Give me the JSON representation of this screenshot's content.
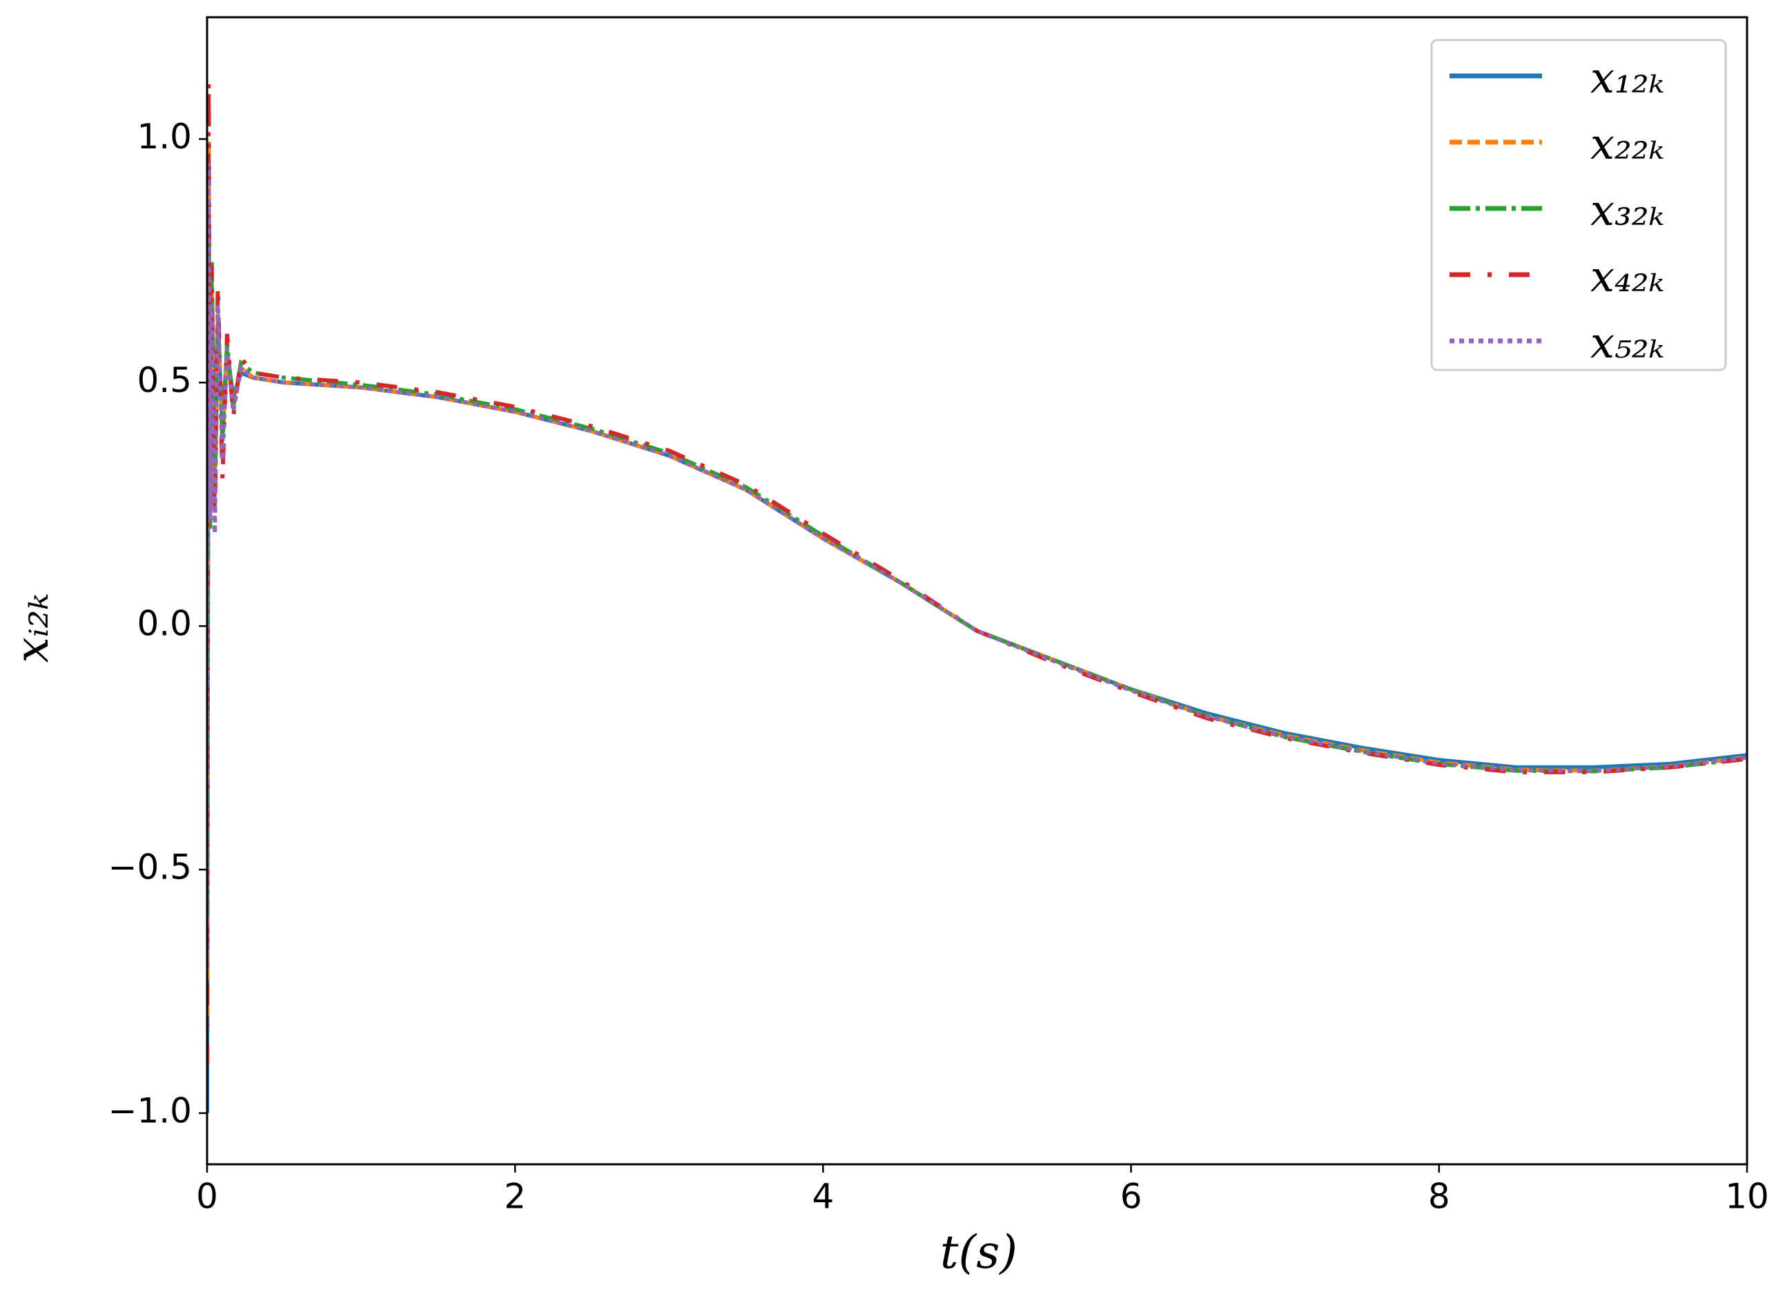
{
  "chart_data": {
    "type": "line",
    "xlabel": "t(s)",
    "ylabel": "xᵢ₂ₖ",
    "x": [
      0,
      0.01,
      0.02,
      0.03,
      0.05,
      0.07,
      0.1,
      0.13,
      0.17,
      0.22,
      0.3,
      0.5,
      1,
      1.5,
      2,
      2.5,
      3,
      3.5,
      4,
      4.5,
      5,
      5.5,
      6,
      6.5,
      7,
      7.5,
      8,
      8.5,
      9,
      9.5,
      10
    ],
    "series": [
      {
        "name": "x₁₂ₖ",
        "color": "#1f77b4",
        "linestyle": "solid",
        "values": [
          -1.0,
          0.9,
          0.3,
          0.68,
          0.35,
          0.6,
          0.42,
          0.56,
          0.47,
          0.52,
          0.51,
          0.5,
          0.49,
          0.47,
          0.44,
          0.4,
          0.35,
          0.28,
          0.18,
          0.09,
          -0.01,
          -0.07,
          -0.13,
          -0.18,
          -0.22,
          -0.25,
          -0.275,
          -0.29,
          -0.29,
          -0.283,
          -0.265
        ]
      },
      {
        "name": "x₂₂ₖ",
        "color": "#ff7f0e",
        "linestyle": "dashed",
        "values": [
          -0.8,
          1.0,
          0.25,
          0.7,
          0.3,
          0.62,
          0.4,
          0.55,
          0.46,
          0.53,
          0.51,
          0.5,
          0.49,
          0.47,
          0.44,
          0.4,
          0.35,
          0.28,
          0.18,
          0.09,
          -0.01,
          -0.07,
          -0.13,
          -0.185,
          -0.225,
          -0.255,
          -0.28,
          -0.295,
          -0.297,
          -0.288,
          -0.27
        ]
      },
      {
        "name": "x₃₂ₖ",
        "color": "#2ca02c",
        "linestyle": "dashdot",
        "values": [
          -0.6,
          0.85,
          0.2,
          0.75,
          0.28,
          0.64,
          0.38,
          0.58,
          0.45,
          0.54,
          0.52,
          0.51,
          0.495,
          0.475,
          0.445,
          0.405,
          0.355,
          0.285,
          0.185,
          0.09,
          -0.01,
          -0.07,
          -0.13,
          -0.185,
          -0.228,
          -0.258,
          -0.283,
          -0.297,
          -0.298,
          -0.29,
          -0.272
        ]
      },
      {
        "name": "x₄₂ₖ",
        "color": "#d62728",
        "linestyle": "loosedashdot",
        "values": [
          -0.9,
          1.12,
          0.28,
          0.74,
          0.22,
          0.7,
          0.3,
          0.6,
          0.43,
          0.55,
          0.52,
          0.51,
          0.5,
          0.48,
          0.45,
          0.41,
          0.36,
          0.29,
          0.19,
          0.095,
          -0.01,
          -0.075,
          -0.135,
          -0.19,
          -0.23,
          -0.26,
          -0.285,
          -0.3,
          -0.3,
          -0.29,
          -0.273
        ]
      },
      {
        "name": "x₅₂ₖ",
        "color": "#9467bd",
        "linestyle": "dotted",
        "values": [
          -0.7,
          0.95,
          0.22,
          0.66,
          0.19,
          0.66,
          0.34,
          0.57,
          0.44,
          0.53,
          0.51,
          0.5,
          0.49,
          0.47,
          0.44,
          0.4,
          0.35,
          0.28,
          0.18,
          0.09,
          -0.01,
          -0.072,
          -0.132,
          -0.186,
          -0.227,
          -0.257,
          -0.282,
          -0.296,
          -0.297,
          -0.288,
          -0.27
        ]
      }
    ],
    "xlim": [
      0,
      10
    ],
    "xticks": [
      0,
      2,
      4,
      6,
      8,
      10
    ],
    "ylim": [
      -1.105,
      1.25
    ],
    "yticks": [
      {
        "value": -1,
        "label": "−1.0"
      },
      {
        "value": -0.5,
        "label": "−0.5"
      },
      {
        "value": 0,
        "label": "0.0"
      },
      0.5,
      {
        "value": 1,
        "label": "1.0"
      }
    ],
    "grid": false,
    "legend": "upper right"
  }
}
